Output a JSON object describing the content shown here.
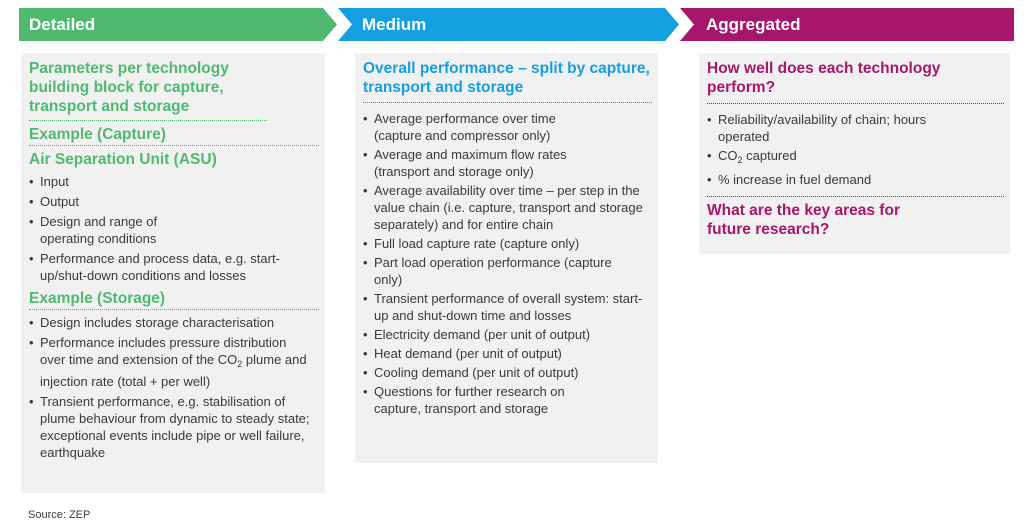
{
  "stages": {
    "detailed": "Detailed",
    "medium": "Medium",
    "aggregated": "Aggregated"
  },
  "detailed": {
    "heading": "Parameters per technology building block for capture, transport and storage",
    "example_capture": "Example (Capture)",
    "asu": "Air Separation Unit (ASU)",
    "asu_items": [
      "Input",
      "Output",
      "Design and range of operating conditions",
      "Performance and process data, e.g. start-up/shut-down conditions and losses"
    ],
    "example_storage": "Example (Storage)",
    "storage_items": {
      "i0": "Design includes storage characterisation",
      "i1_pre": "Performance includes pressure distribution over time and extension of the CO",
      "i1_sub": "2",
      "i1_post": " plume and injection rate (total + per well)",
      "i2": "Transient performance, e.g. stabilisation of plume behaviour from dynamic to steady state; exceptional events include pipe or well failure, earthquake"
    }
  },
  "medium": {
    "heading": "Overall performance – split by capture, transport and storage",
    "items": [
      "Average performance over time (capture and compressor only)",
      "Average and maximum flow rates (transport and storage only)",
      "Average availability over time – per step in the value chain (i.e. capture, transport and storage separately) and for entire chain",
      "Full load capture rate (capture only)",
      "Part load operation performance (capture only)",
      "Transient performance of overall system: start-up and shut-down time and losses",
      "Electricity demand (per unit of output)",
      "Heat demand (per unit of output)",
      "Cooling demand (per unit of output)",
      "Questions for further research on capture, transport and storage"
    ]
  },
  "aggregated": {
    "heading1": "How well does each technology perform?",
    "items": {
      "i0": "Reliability/availability of chain; hours operated",
      "i1_pre": "CO",
      "i1_sub": "2",
      "i1_post": " captured",
      "i2": "% increase in fuel demand"
    },
    "heading2": "What are the key areas for future research?"
  },
  "source": "Source: ZEP",
  "colors": {
    "detailed": "#4fb96f",
    "medium": "#139fe0",
    "aggregated": "#a6166b",
    "panel": "#f2f1f1"
  }
}
